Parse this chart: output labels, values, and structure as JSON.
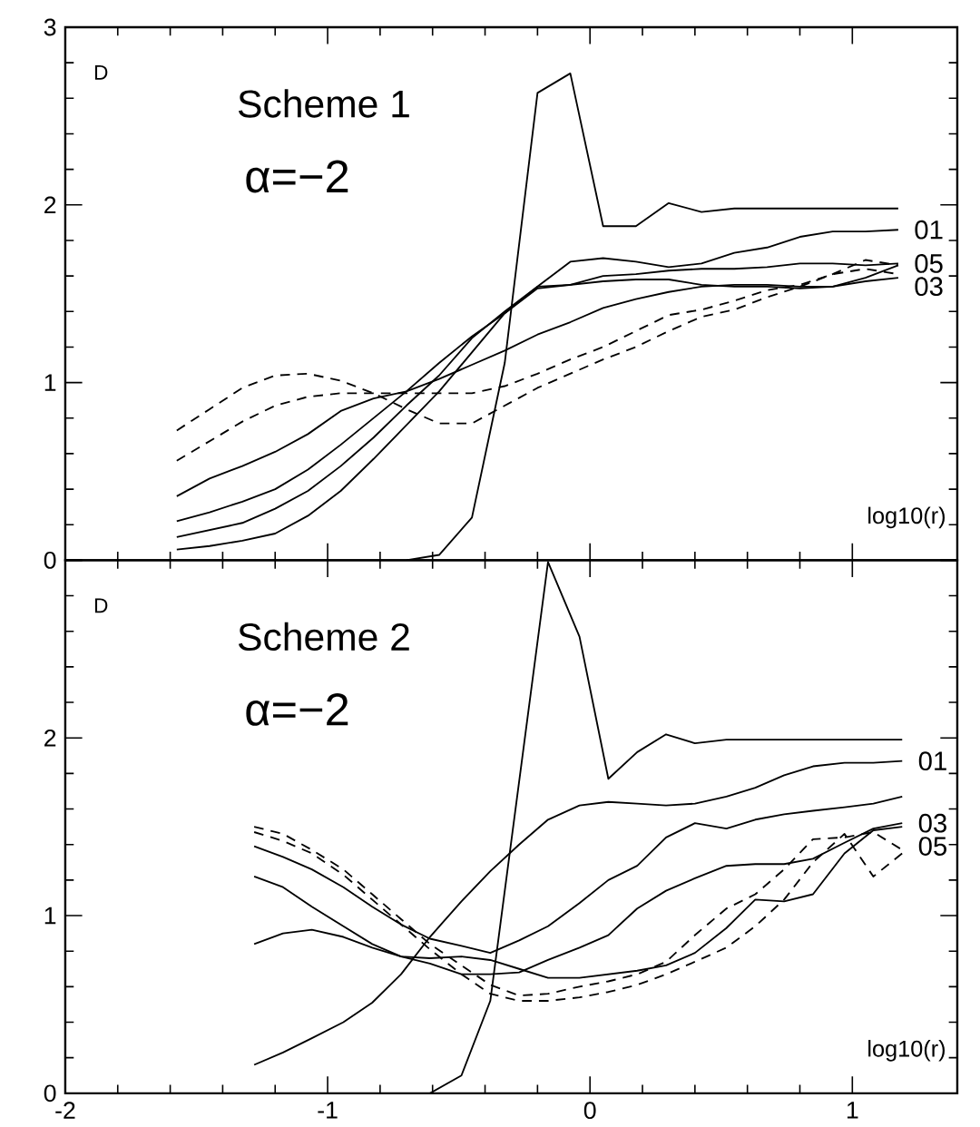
{
  "chart_data": [
    {
      "type": "line",
      "legend": "right",
      "title": "Scheme 1",
      "subtitle": "α=−2",
      "xlabel": "log10(r)",
      "ylabel": "D",
      "xlim": [
        -2,
        1.4
      ],
      "ylim": [
        0,
        3
      ],
      "xticks": [
        -2,
        -1,
        0,
        1
      ],
      "yticks": [
        0,
        1,
        2,
        3
      ],
      "tick_labels": "y",
      "x": [
        -1.575,
        -1.45,
        -1.325,
        -1.2,
        -1.075,
        -0.95,
        -0.825,
        -0.7,
        -0.575,
        -0.45,
        -0.325,
        -0.2,
        -0.075,
        0.05,
        0.175,
        0.3,
        0.425,
        0.55,
        0.675,
        0.8,
        0.925,
        1.05,
        1.175
      ],
      "series": [
        {
          "color": "#000000",
          "line_style": "solid",
          "values": [
            null,
            null,
            null,
            null,
            null,
            null,
            null,
            0,
            0.03,
            0.24,
            1.11,
            2.63,
            2.74,
            1.88,
            1.88,
            2.01,
            1.96,
            1.98,
            1.98,
            1.98,
            1.98,
            1.98,
            1.98
          ]
        },
        {
          "name": "01",
          "color": "#000000",
          "line_style": "solid",
          "values": [
            0.06,
            0.08,
            0.11,
            0.15,
            0.25,
            0.39,
            0.57,
            0.76,
            0.95,
            1.17,
            1.39,
            1.54,
            1.68,
            1.7,
            1.68,
            1.65,
            1.67,
            1.73,
            1.76,
            1.82,
            1.85,
            1.85,
            1.86
          ]
        },
        {
          "name": "05",
          "color": "#000000",
          "line_style": "solid",
          "values": [
            0.13,
            0.17,
            0.21,
            0.29,
            0.39,
            0.53,
            0.69,
            0.87,
            1.04,
            1.25,
            1.4,
            1.54,
            1.55,
            1.6,
            1.61,
            1.63,
            1.64,
            1.64,
            1.65,
            1.67,
            1.67,
            1.66,
            1.67
          ]
        },
        {
          "color": "#000000",
          "line_style": "solid",
          "values": [
            0.22,
            0.27,
            0.33,
            0.4,
            0.51,
            0.65,
            0.8,
            0.95,
            1.11,
            1.26,
            1.39,
            1.53,
            1.55,
            1.57,
            1.58,
            1.58,
            1.55,
            1.54,
            1.54,
            1.53,
            1.54,
            1.59,
            1.66
          ]
        },
        {
          "name": "03",
          "color": "#000000",
          "line_style": "solid",
          "values": [
            0.36,
            0.46,
            0.53,
            0.61,
            0.71,
            0.84,
            0.91,
            0.95,
            1.02,
            1.1,
            1.18,
            1.27,
            1.34,
            1.42,
            1.47,
            1.51,
            1.54,
            1.55,
            1.55,
            1.54,
            1.54,
            1.57,
            1.59
          ]
        },
        {
          "color": "#000000",
          "line_style": "dashed",
          "values": [
            0.73,
            0.85,
            0.97,
            1.04,
            1.05,
            1.01,
            0.94,
            0.85,
            0.77,
            0.77,
            0.87,
            0.97,
            1.05,
            1.13,
            1.2,
            1.29,
            1.37,
            1.41,
            1.48,
            1.54,
            1.61,
            1.69,
            1.66
          ]
        },
        {
          "color": "#000000",
          "line_style": "dashed",
          "values": [
            0.56,
            0.67,
            0.78,
            0.87,
            0.92,
            0.94,
            0.94,
            0.94,
            0.94,
            0.94,
            0.98,
            1.05,
            1.13,
            1.2,
            1.29,
            1.38,
            1.41,
            1.46,
            1.52,
            1.55,
            1.61,
            1.64,
            1.61
          ]
        }
      ]
    },
    {
      "type": "line",
      "legend": "right",
      "title": "Scheme 2",
      "subtitle": "α=−2",
      "xlabel": "log10(r)",
      "ylabel": "D",
      "xlim": [
        -2,
        1.4
      ],
      "ylim": [
        0,
        3
      ],
      "xticks": [
        -2,
        -1,
        0,
        1
      ],
      "yticks": [
        0,
        1,
        2,
        {
          "value": 3,
          "label": null
        }
      ],
      "x": [
        -1.28,
        -1.17,
        -1.06,
        -0.94,
        -0.83,
        -0.72,
        -0.61,
        -0.49,
        -0.38,
        -0.27,
        -0.16,
        -0.04,
        0.07,
        0.18,
        0.29,
        0.4,
        0.52,
        0.63,
        0.74,
        0.85,
        0.97,
        1.08,
        1.19
      ],
      "series": [
        {
          "color": "#000000",
          "line_style": "solid",
          "x": [
            -0.61,
            -0.49,
            -0.38,
            -0.16,
            -0.04,
            0.07,
            0.18,
            0.29,
            0.4,
            0.52,
            0.63,
            0.74,
            0.85,
            0.97,
            1.08,
            1.19
          ],
          "values": [
            0,
            0.1,
            0.52,
            2.99,
            2.57,
            1.77,
            1.92,
            2.02,
            1.97,
            1.99,
            1.99,
            1.99,
            1.99,
            1.99,
            1.99,
            1.99
          ]
        },
        {
          "name": "01",
          "color": "#000000",
          "line_style": "solid",
          "values": [
            0.16,
            0.23,
            0.31,
            0.4,
            0.51,
            0.67,
            0.88,
            1.08,
            1.25,
            1.4,
            1.54,
            1.62,
            1.64,
            1.63,
            1.62,
            1.63,
            1.67,
            1.72,
            1.79,
            1.84,
            1.86,
            1.86,
            1.87
          ]
        },
        {
          "color": "#000000",
          "line_style": "solid",
          "values": [
            1.39,
            1.33,
            1.26,
            1.16,
            1.05,
            0.95,
            0.87,
            0.83,
            0.79,
            0.86,
            0.94,
            1.07,
            1.2,
            1.28,
            1.44,
            1.52,
            1.49,
            1.54,
            1.57,
            1.59,
            1.61,
            1.63,
            1.67
          ]
        },
        {
          "name": "03",
          "color": "#000000",
          "line_style": "solid",
          "values": [
            1.22,
            1.16,
            1.05,
            0.94,
            0.84,
            0.77,
            0.73,
            0.67,
            0.67,
            0.68,
            0.75,
            0.82,
            0.89,
            1.04,
            1.14,
            1.21,
            1.28,
            1.29,
            1.29,
            1.32,
            1.41,
            1.49,
            1.52
          ]
        },
        {
          "name": "05",
          "color": "#000000",
          "line_style": "solid",
          "values": [
            0.84,
            0.9,
            0.92,
            0.88,
            0.82,
            0.77,
            0.76,
            0.77,
            0.75,
            0.7,
            0.65,
            0.65,
            0.67,
            0.69,
            0.72,
            0.79,
            0.93,
            1.09,
            1.08,
            1.12,
            1.35,
            1.48,
            1.5
          ]
        },
        {
          "color": "#000000",
          "line_style": "dashed",
          "values": [
            1.5,
            1.46,
            1.37,
            1.26,
            1.12,
            0.98,
            0.84,
            0.72,
            0.61,
            0.55,
            0.56,
            0.6,
            0.63,
            0.67,
            0.74,
            0.89,
            1.04,
            1.12,
            1.26,
            1.43,
            1.44,
            1.47,
            1.37
          ]
        },
        {
          "color": "#000000",
          "line_style": "dashed",
          "values": [
            1.47,
            1.42,
            1.35,
            1.23,
            1.09,
            0.95,
            0.81,
            0.67,
            0.56,
            0.52,
            0.52,
            0.54,
            0.57,
            0.61,
            0.67,
            0.74,
            0.82,
            0.94,
            1.09,
            1.3,
            1.46,
            1.22,
            1.35
          ]
        }
      ]
    }
  ]
}
